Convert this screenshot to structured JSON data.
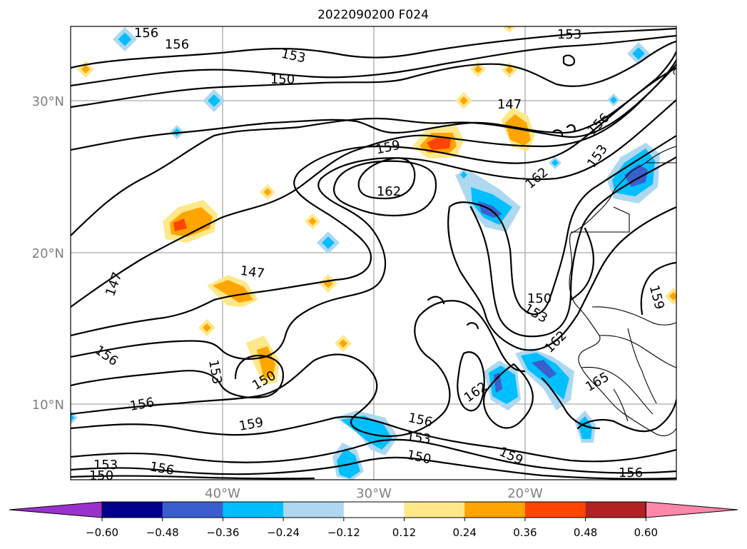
{
  "title": "2022090200 F024",
  "axes": {
    "lat_labels": [
      "30°N",
      "20°N",
      "10°N"
    ],
    "lon_labels": [
      "40°W",
      "30°W",
      "20°W"
    ]
  },
  "contour_labels": {
    "c147a": "147",
    "c147b": "147",
    "c147c": "147",
    "c150a": "150",
    "c150b": "150",
    "c150c": "150",
    "c150d": "150",
    "c150e": "150",
    "c153a": "153",
    "c153b": "153",
    "c153c": "153",
    "c153d": "153",
    "c153e": "153",
    "c153f": "153",
    "c156a": "156",
    "c156b": "156",
    "c156c": "156",
    "c156d": "156",
    "c156e": "156",
    "c156f": "156",
    "c156g": "156",
    "c159a": "159",
    "c159b": "159",
    "c159c": "159",
    "c159d": "159",
    "c162a": "162",
    "c162b": "162",
    "c162c": "162",
    "c162d": "162",
    "c165a": "165"
  },
  "colorbar": {
    "tick_labels": [
      "−0.60",
      "−0.48",
      "−0.36",
      "−0.24",
      "−0.12",
      "0.12",
      "0.24",
      "0.36",
      "0.48",
      "0.60"
    ],
    "colors": [
      "#9932cc",
      "#00008b",
      "#3a5fcd",
      "#00bfff",
      "#add8f0",
      "#ffffff",
      "#ffe88a",
      "#ffa500",
      "#ff4500",
      "#b22222",
      "#ff88aa"
    ]
  },
  "colors": {
    "neg_light": "#add8f0",
    "neg_mid": "#00bfff",
    "neg_dark": "#3a5fcd",
    "pos_light": "#ffe88a",
    "pos_mid": "#ffa500",
    "pos_dark": "#ff4500",
    "grid": "#a9a9a9",
    "tick_text": "#808080"
  }
}
